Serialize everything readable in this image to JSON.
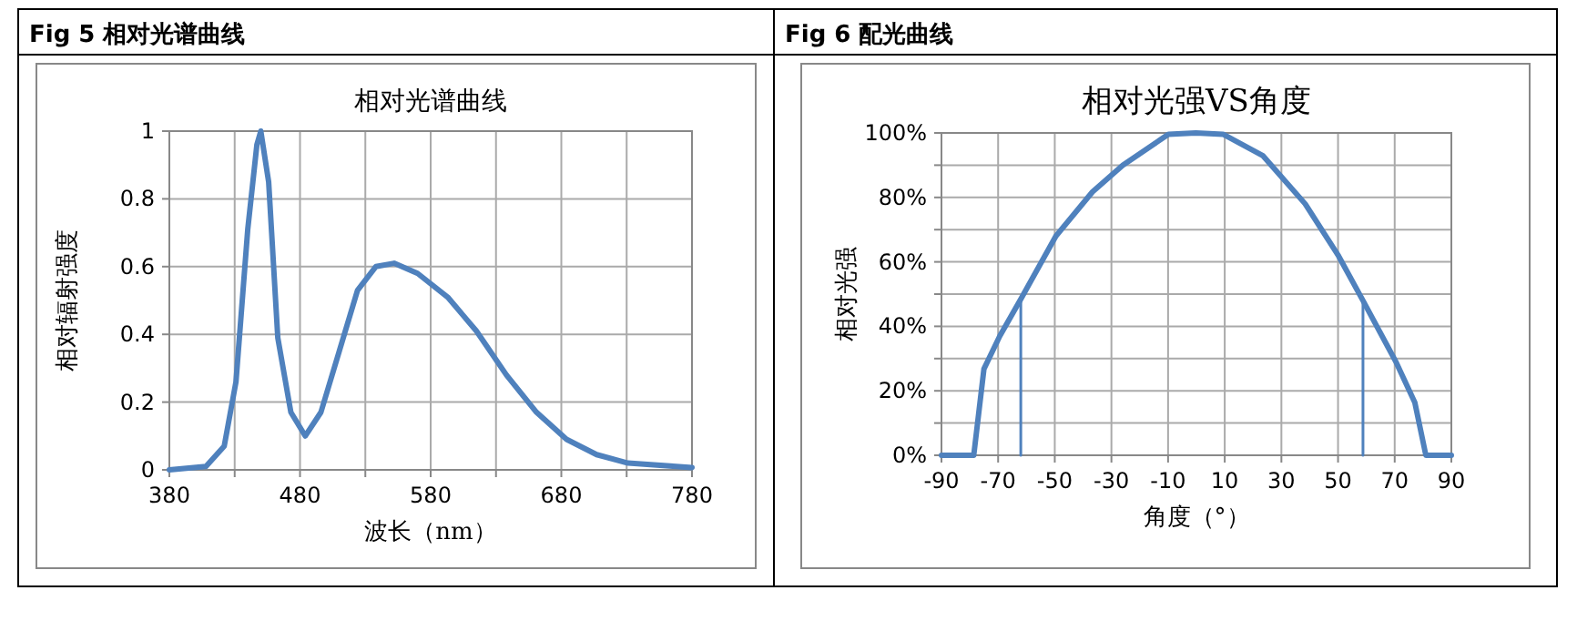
{
  "chart_data": [
    {
      "type": "line",
      "title": "Fig 5 相对光谱曲线",
      "subtitle": "相对光谱曲线",
      "xlabel": "波长（nm）",
      "ylabel": "相对辐射强度",
      "xlim": [
        380,
        780
      ],
      "ylim": [
        0,
        1
      ],
      "xticks": [
        380,
        {
          "value": 430,
          "label": null
        },
        480,
        {
          "value": 530,
          "label": null
        },
        580,
        {
          "value": 630,
          "label": null
        },
        680,
        {
          "value": 730,
          "label": null
        },
        780
      ],
      "yticks": [
        0,
        0.2,
        0.4,
        0.6,
        0.8,
        1
      ],
      "grid": true,
      "marker": "none",
      "line_style": "solid",
      "series": [
        {
          "color": "#4f81bd",
          "x": [
            380,
            408,
            422,
            431,
            440,
            447,
            450,
            456,
            463,
            473,
            484,
            496,
            510,
            524,
            538,
            552,
            570,
            593,
            615,
            638,
            661,
            684,
            707,
            731,
            780
          ],
          "values": [
            0,
            0.01,
            0.07,
            0.26,
            0.71,
            0.96,
            1.0,
            0.85,
            0.39,
            0.17,
            0.1,
            0.17,
            0.35,
            0.53,
            0.6,
            0.61,
            0.58,
            0.51,
            0.41,
            0.28,
            0.17,
            0.09,
            0.045,
            0.02,
            0.007
          ]
        }
      ]
    },
    {
      "type": "line",
      "title": "Fig 6 配光曲线",
      "subtitle": "相对光强VS角度",
      "xlabel": "角度（°）",
      "ylabel": "相对光强",
      "xlim": [
        -90,
        90
      ],
      "ylim": [
        0,
        100
      ],
      "xticks": [
        -90,
        -70,
        -50,
        -30,
        -10,
        10,
        30,
        50,
        70,
        90
      ],
      "yticks": [
        {
          "value": 0,
          "label": "0%"
        },
        {
          "value": 10,
          "label": null
        },
        {
          "value": 20,
          "label": "20%"
        },
        {
          "value": 30,
          "label": null
        },
        {
          "value": 40,
          "label": "40%"
        },
        {
          "value": 50,
          "label": null
        },
        {
          "value": 60,
          "label": "60%"
        },
        {
          "value": 70,
          "label": null
        },
        {
          "value": 80,
          "label": "80%"
        },
        {
          "value": 90,
          "label": null
        },
        {
          "value": 100,
          "label": "100%"
        }
      ],
      "grid": true,
      "marker": "none",
      "line_style": "solid",
      "series": [
        {
          "color": "#4f81bd",
          "x": [
            -90,
            -78.6,
            -75,
            -69.4,
            -61.9,
            -49.6,
            -36.7,
            -26,
            -9.9,
            -0.2,
            9.4,
            23.4,
            38.4,
            50.2,
            58.8,
            70.6,
            77.1,
            81,
            90
          ],
          "values": [
            0,
            0,
            26.8,
            37,
            48.6,
            68,
            81.7,
            90,
            99.6,
            100,
            99.6,
            93,
            78,
            61.8,
            48,
            28.7,
            16.4,
            0,
            0
          ]
        },
        {
          "color": "#4f81bd",
          "x": [
            -62,
            -62
          ],
          "values": [
            0,
            48.6
          ]
        },
        {
          "color": "#4f81bd",
          "x": [
            58.8,
            58.8
          ],
          "values": [
            0,
            48
          ]
        }
      ]
    }
  ]
}
